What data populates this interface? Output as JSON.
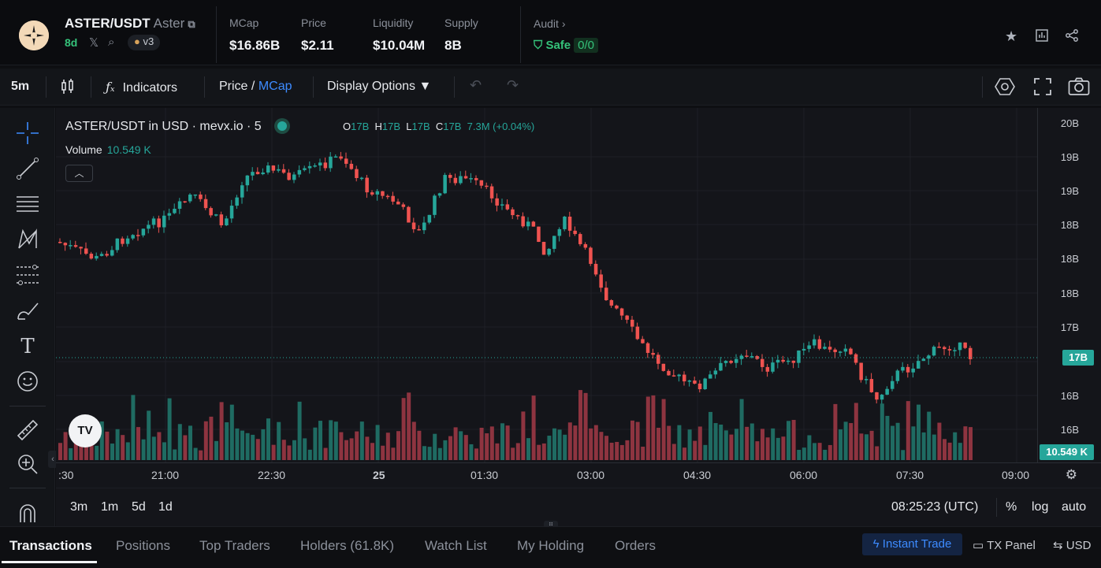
{
  "header": {
    "pair": "ASTER/USDT",
    "token_name": "Aster",
    "age": "8d",
    "version": "v3",
    "stats": [
      {
        "label": "MCap",
        "value": "$16.86B"
      },
      {
        "label": "Price",
        "value": "$2.11"
      },
      {
        "label": "Liquidity",
        "value": "$10.04M"
      },
      {
        "label": "Supply",
        "value": "8B"
      }
    ],
    "audit_label": "Audit",
    "safe_label": "Safe",
    "safe_count": "0/0"
  },
  "toolbar": {
    "interval": "5m",
    "indicators_label": "Indicators",
    "price_label": "Price",
    "slash": "/",
    "mcap_label": "MCap",
    "display_options_label": "Display Options"
  },
  "chart": {
    "legend_title": "ASTER/USDT in USD · mevx.io · 5",
    "ohlc": {
      "o_label": "O",
      "o": "17B",
      "h_label": "H",
      "h": "17B",
      "l_label": "L",
      "l": "17B",
      "c_label": "C",
      "c": "17B",
      "change": "7.3M (+0.04%)"
    },
    "volume_label": "Volume",
    "volume_value": "10.549 K",
    "last_price_label": "17B",
    "last_volume_label": "10.549 K",
    "timeframes": [
      "3m",
      "1m",
      "5d",
      "1d"
    ],
    "clock": "08:25:23 (UTC)",
    "pct_label": "%",
    "log_label": "log",
    "auto_label": "auto"
  },
  "chart_data": {
    "type": "candlestick",
    "title": "ASTER/USDT in USD · mevx.io · 5",
    "y_ticks": [
      "20B",
      "19B",
      "19B",
      "18B",
      "18B",
      "18B",
      "17B",
      "16B",
      "16B"
    ],
    "x_ticks": [
      ":30",
      "21:00",
      "22:30",
      "25",
      "01:30",
      "03:00",
      "04:30",
      "06:00",
      "07:30",
      "09:00"
    ],
    "last_value": "17B",
    "last_volume": "10.549 K",
    "colors": {
      "up": "#26a69a",
      "down": "#ef5350"
    }
  },
  "tabs": {
    "items": [
      "Transactions",
      "Positions",
      "Top Traders",
      "Holders (61.8K)",
      "Watch List",
      "My Holding",
      "Orders"
    ],
    "instant_trade": "Instant Trade",
    "tx_panel": "TX Panel",
    "currency": "USD"
  }
}
